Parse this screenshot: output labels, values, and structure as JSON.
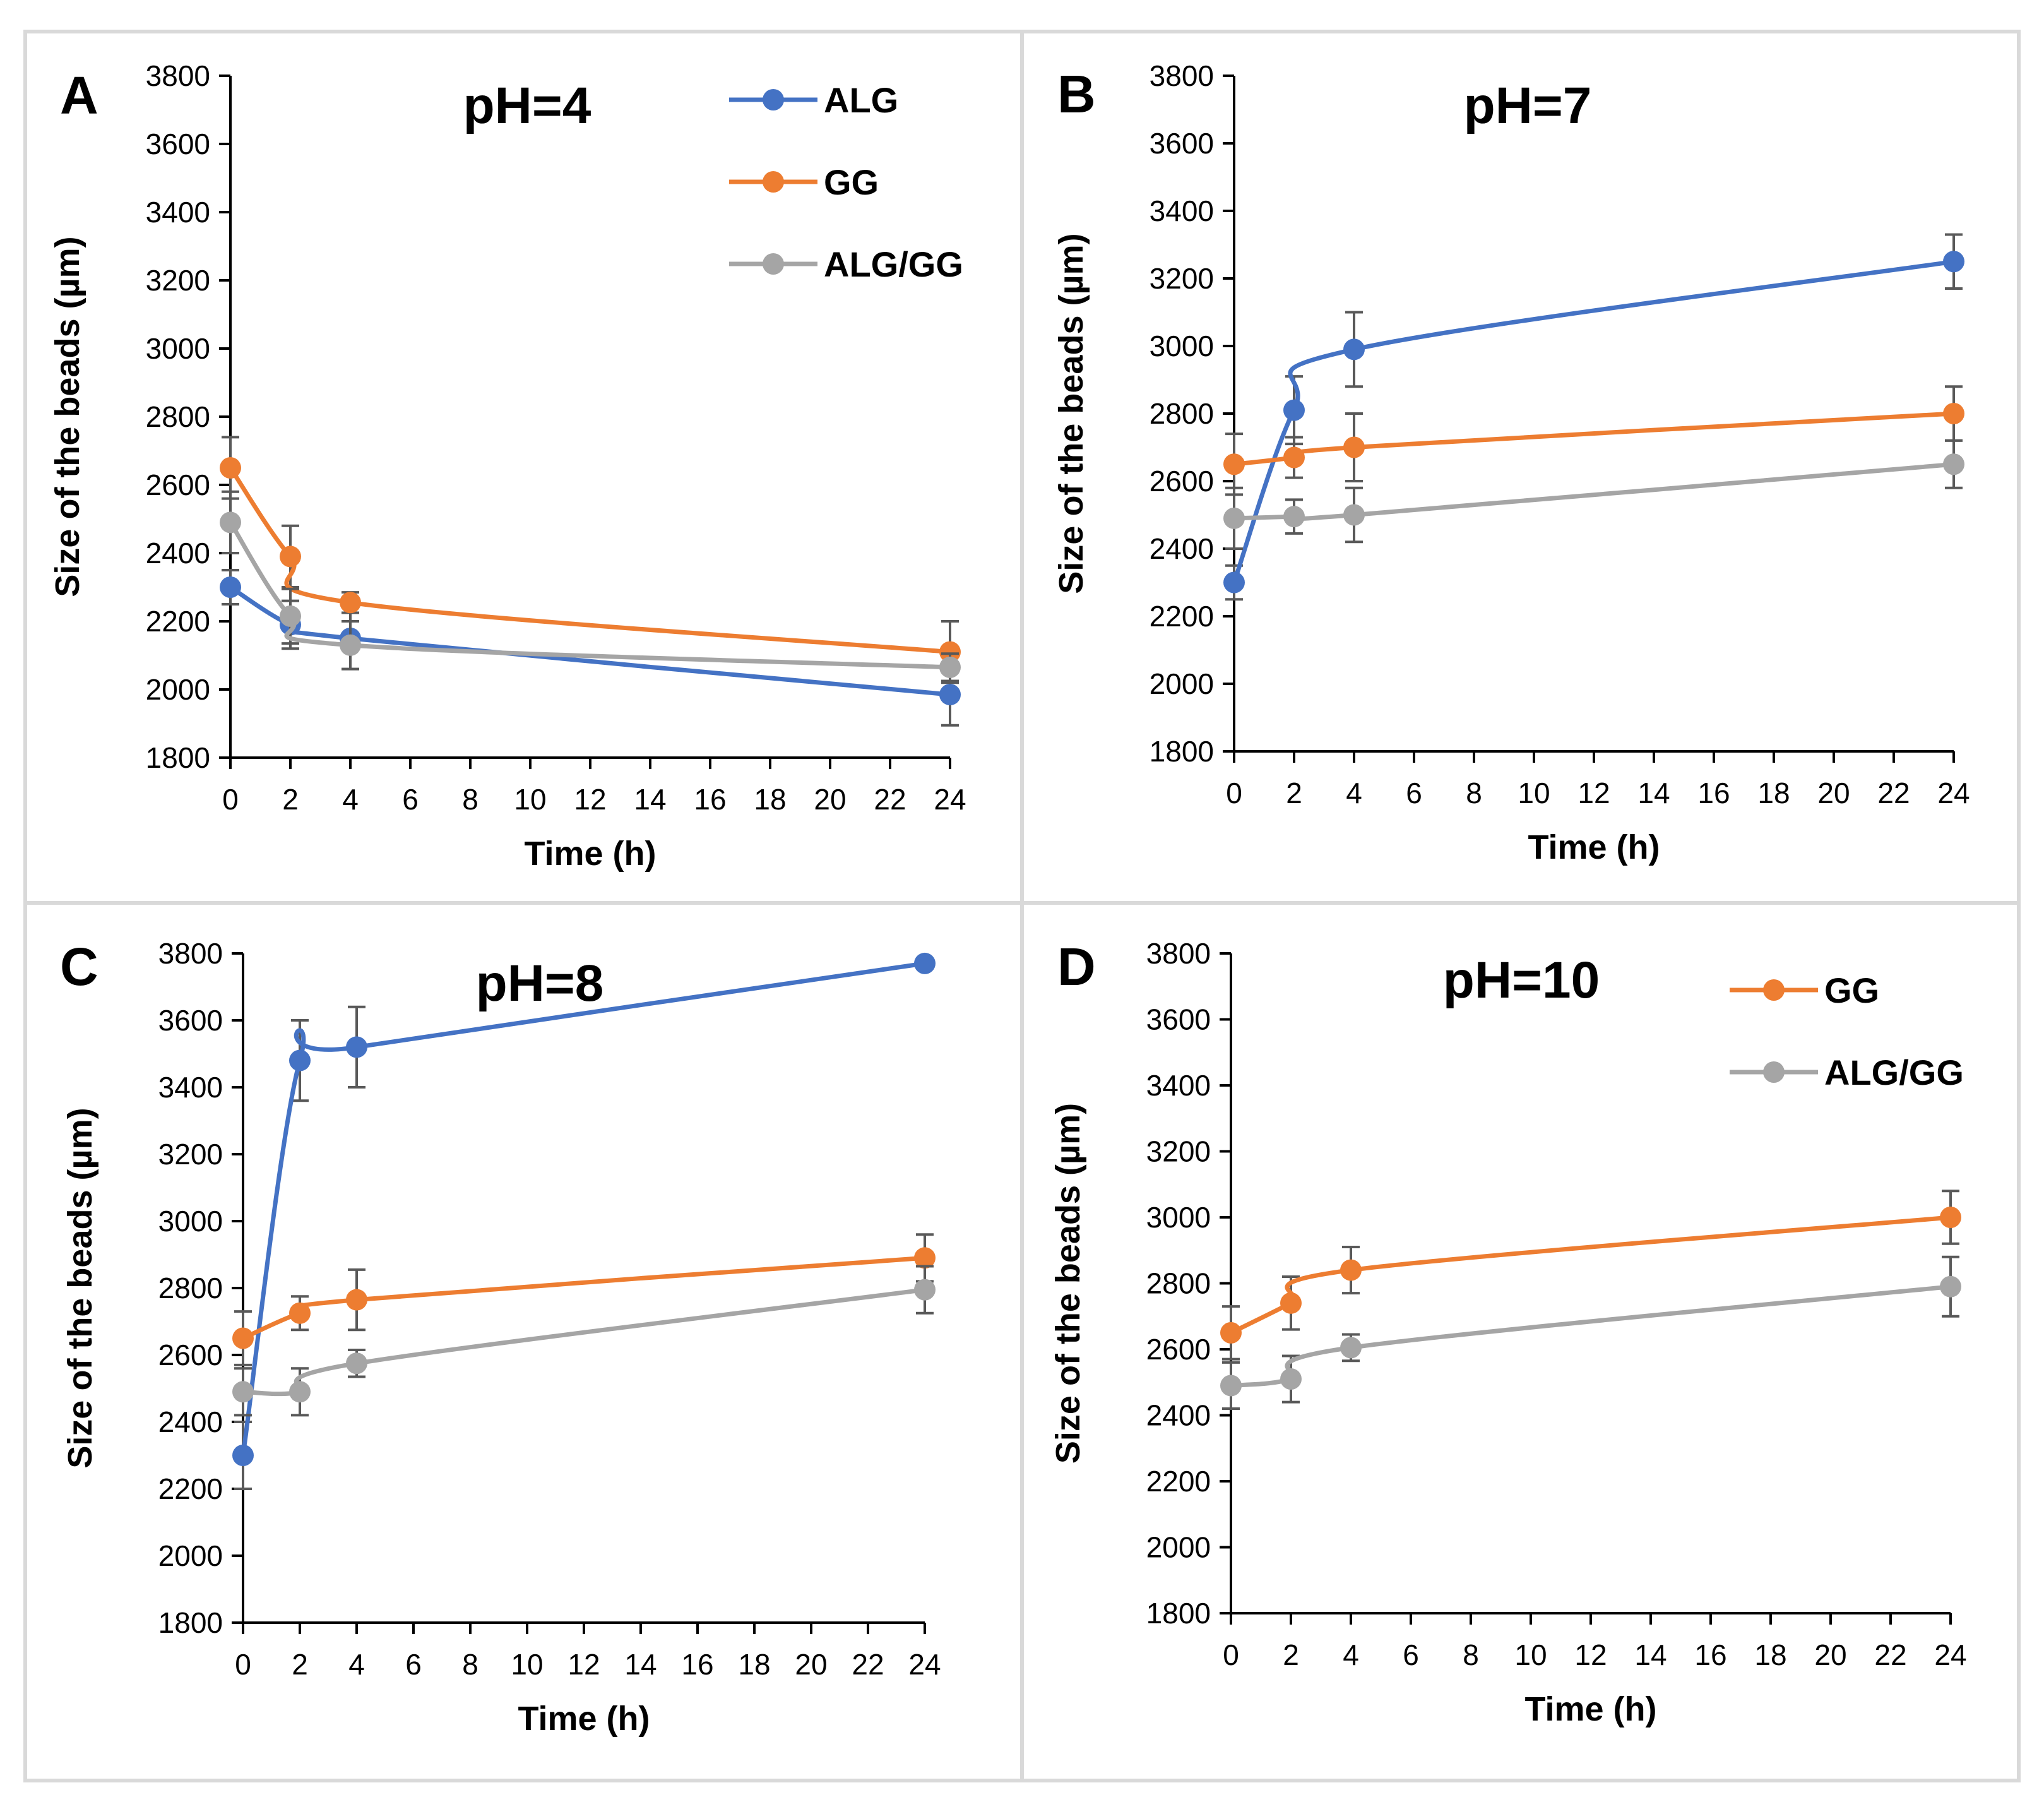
{
  "chart_data": [
    {
      "type": "line",
      "panel_label": "A",
      "title": "pH=4",
      "xlabel": "Time (h)",
      "ylabel": "Size of the beads (µm)",
      "xlim": [
        0,
        24
      ],
      "ylim": [
        1800,
        3800
      ],
      "x_ticks": [
        "0",
        "2",
        "4",
        "6",
        "8",
        "10",
        "12",
        "14",
        "16",
        "18",
        "20",
        "22",
        "24"
      ],
      "y_ticks": [
        "1800",
        "2000",
        "2200",
        "2400",
        "2600",
        "2800",
        "3000",
        "3200",
        "3400",
        "3600",
        "3800"
      ],
      "legend": [
        "ALG",
        "GG",
        "ALG/GG"
      ],
      "legend_position": "top-right",
      "x": [
        0,
        2,
        4,
        24
      ],
      "series": [
        {
          "name": "ALG",
          "color": "#4472C4",
          "values": [
            2300,
            2190,
            2150,
            1985
          ],
          "errors": [
            50,
            70,
            90,
            90
          ]
        },
        {
          "name": "GG",
          "color": "#ED7D31",
          "values": [
            2650,
            2390,
            2255,
            2110
          ],
          "errors": [
            90,
            90,
            30,
            90
          ]
        },
        {
          "name": "ALG/GG",
          "color": "#A5A5A5",
          "values": [
            2490,
            2215,
            2130,
            2065
          ],
          "errors": [
            90,
            80,
            70,
            40
          ]
        }
      ]
    },
    {
      "type": "line",
      "panel_label": "B",
      "title": "pH=7",
      "xlabel": "Time (h)",
      "ylabel": "Size of the beads (µm)",
      "xlim": [
        0,
        24
      ],
      "ylim": [
        1800,
        3800
      ],
      "x_ticks": [
        "0",
        "2",
        "4",
        "6",
        "8",
        "10",
        "12",
        "14",
        "16",
        "18",
        "20",
        "22",
        "24"
      ],
      "y_ticks": [
        "1800",
        "2000",
        "2200",
        "2400",
        "2600",
        "2800",
        "3000",
        "3200",
        "3400",
        "3600",
        "3800"
      ],
      "legend": [],
      "x": [
        0,
        2,
        4,
        24
      ],
      "series": [
        {
          "name": "ALG",
          "color": "#4472C4",
          "values": [
            2300,
            2810,
            2990,
            3250
          ],
          "errors": [
            50,
            100,
            110,
            80
          ]
        },
        {
          "name": "GG",
          "color": "#ED7D31",
          "values": [
            2650,
            2670,
            2700,
            2800
          ],
          "errors": [
            90,
            60,
            100,
            80
          ]
        },
        {
          "name": "ALG/GG",
          "color": "#A5A5A5",
          "values": [
            2490,
            2495,
            2500,
            2650
          ],
          "errors": [
            90,
            50,
            80,
            70
          ]
        }
      ]
    },
    {
      "type": "line",
      "panel_label": "C",
      "title": "pH=8",
      "xlabel": "Time (h)",
      "ylabel": "Size of the beads (µm)",
      "xlim": [
        0,
        24
      ],
      "ylim": [
        1800,
        3800
      ],
      "x_ticks": [
        "0",
        "2",
        "4",
        "6",
        "8",
        "10",
        "12",
        "14",
        "16",
        "18",
        "20",
        "22",
        "24"
      ],
      "y_ticks": [
        "1800",
        "2000",
        "2200",
        "2400",
        "2600",
        "2800",
        "3000",
        "3200",
        "3400",
        "3600",
        "3800"
      ],
      "legend": [],
      "x": [
        0,
        2,
        4,
        24
      ],
      "series": [
        {
          "name": "ALG",
          "color": "#4472C4",
          "values": [
            2300,
            3480,
            3520,
            3770
          ],
          "errors": [
            100,
            120,
            120,
            0
          ]
        },
        {
          "name": "GG",
          "color": "#ED7D31",
          "values": [
            2650,
            2725,
            2765,
            2890
          ],
          "errors": [
            80,
            50,
            90,
            70
          ]
        },
        {
          "name": "ALG/GG",
          "color": "#A5A5A5",
          "values": [
            2490,
            2490,
            2575,
            2795
          ],
          "errors": [
            70,
            70,
            40,
            70
          ]
        }
      ]
    },
    {
      "type": "line",
      "panel_label": "D",
      "title": "pH=10",
      "xlabel": "Time (h)",
      "ylabel": "Size of the beads (µm)",
      "xlim": [
        0,
        24
      ],
      "ylim": [
        1800,
        3800
      ],
      "x_ticks": [
        "0",
        "2",
        "4",
        "6",
        "8",
        "10",
        "12",
        "14",
        "16",
        "18",
        "20",
        "22",
        "24"
      ],
      "y_ticks": [
        "1800",
        "2000",
        "2200",
        "2400",
        "2600",
        "2800",
        "3000",
        "3200",
        "3400",
        "3600",
        "3800"
      ],
      "legend": [
        "GG",
        "ALG/GG"
      ],
      "legend_position": "top-right",
      "x": [
        0,
        2,
        4,
        24
      ],
      "series": [
        {
          "name": "GG",
          "color": "#ED7D31",
          "values": [
            2650,
            2740,
            2840,
            3000
          ],
          "errors": [
            80,
            80,
            70,
            80
          ]
        },
        {
          "name": "ALG/GG",
          "color": "#A5A5A5",
          "values": [
            2490,
            2510,
            2605,
            2790
          ],
          "errors": [
            70,
            70,
            40,
            90
          ]
        }
      ]
    }
  ]
}
